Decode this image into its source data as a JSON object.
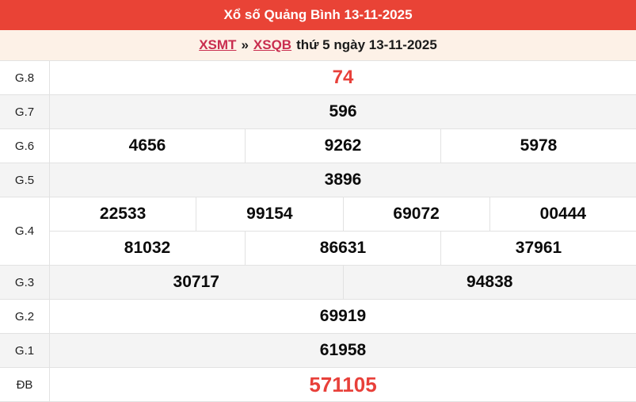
{
  "header": {
    "title": "Xổ số Quảng Bình 13-11-2025"
  },
  "breadcrumb": {
    "region_link": "XSMT",
    "separator": "»",
    "province_link": "XSQB",
    "suffix": "thứ 5 ngày 13-11-2025"
  },
  "colors": {
    "header_bg": "#e94336",
    "header_text": "#ffffff",
    "page_bg": "#fdf1e7",
    "link_red": "#c92d4f",
    "highlight_number_red": "#e8403a",
    "shaded_row_bg": "#f4f4f4",
    "border": "#e2e2e2"
  },
  "table": {
    "rows": [
      {
        "label": "G.8",
        "cells": [
          "74"
        ]
      },
      {
        "label": "G.7",
        "cells": [
          "596"
        ]
      },
      {
        "label": "G.6",
        "cells": [
          "4656",
          "9262",
          "5978"
        ]
      },
      {
        "label": "G.5",
        "cells": [
          "3896"
        ]
      },
      {
        "label": "G.4",
        "lines": [
          [
            "22533",
            "99154",
            "69072",
            "00444"
          ],
          [
            "81032",
            "86631",
            "37961"
          ]
        ]
      },
      {
        "label": "G.3",
        "cells": [
          "30717",
          "94838"
        ]
      },
      {
        "label": "G.2",
        "cells": [
          "69919"
        ]
      },
      {
        "label": "G.1",
        "cells": [
          "61958"
        ]
      },
      {
        "label": "ĐB",
        "cells": [
          "571105"
        ]
      }
    ]
  }
}
